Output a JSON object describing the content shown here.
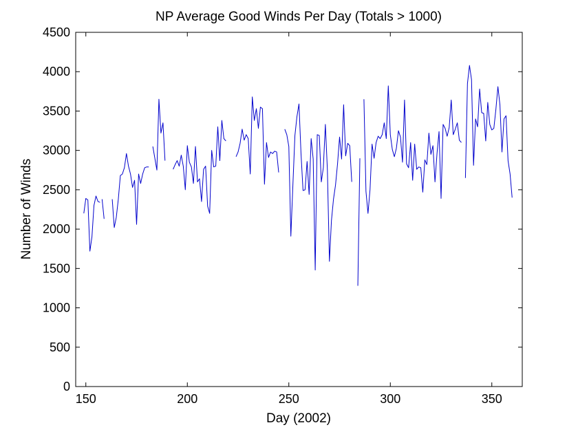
{
  "chart_data": {
    "type": "line",
    "title": "NP Average Good Winds Per Day (Totals > 1000)",
    "xlabel": "Day (2002)",
    "ylabel": "Number of Winds",
    "xlim": [
      145,
      365
    ],
    "ylim": [
      0,
      4500
    ],
    "xticks": [
      150,
      200,
      250,
      300,
      350
    ],
    "yticks": [
      0,
      500,
      1000,
      1500,
      2000,
      2500,
      3000,
      3500,
      4000,
      4500
    ],
    "grid": false,
    "legend": "none",
    "line_color": "#0000cc",
    "series": [
      {
        "segments": [
          [
            [
              149,
              2200
            ],
            [
              150,
              2390
            ],
            [
              151,
              2370
            ],
            [
              152,
              1720
            ],
            [
              153,
              1900
            ],
            [
              154,
              2300
            ],
            [
              155,
              2420
            ],
            [
              156,
              2350
            ],
            [
              157,
              2340
            ]
          ],
          [
            [
              158,
              2380
            ],
            [
              159,
              2130
            ]
          ],
          [
            [
              163,
              2380
            ],
            [
              164,
              2020
            ],
            [
              165,
              2150
            ],
            [
              166,
              2380
            ],
            [
              167,
              2680
            ],
            [
              168,
              2700
            ],
            [
              169,
              2780
            ],
            [
              170,
              2960
            ],
            [
              171,
              2800
            ],
            [
              172,
              2700
            ],
            [
              173,
              2530
            ],
            [
              174,
              2620
            ],
            [
              175,
              2060
            ],
            [
              176,
              2700
            ],
            [
              177,
              2580
            ],
            [
              178,
              2700
            ],
            [
              179,
              2780
            ],
            [
              180,
              2790
            ],
            [
              181,
              2790
            ]
          ],
          [
            [
              183,
              3050
            ],
            [
              184,
              2900
            ],
            [
              185,
              2750
            ],
            [
              186,
              3650
            ],
            [
              187,
              3220
            ],
            [
              188,
              3350
            ],
            [
              189,
              2870
            ]
          ],
          [
            [
              193,
              2760
            ],
            [
              194,
              2820
            ],
            [
              195,
              2870
            ],
            [
              196,
              2800
            ],
            [
              197,
              2940
            ],
            [
              198,
              2800
            ],
            [
              199,
              2500
            ],
            [
              200,
              3060
            ],
            [
              201,
              2850
            ],
            [
              202,
              2790
            ],
            [
              203,
              2580
            ],
            [
              204,
              3050
            ],
            [
              205,
              2600
            ],
            [
              206,
              2640
            ],
            [
              207,
              2350
            ],
            [
              208,
              2760
            ],
            [
              209,
              2800
            ],
            [
              210,
              2290
            ],
            [
              211,
              2200
            ],
            [
              212,
              3000
            ],
            [
              213,
              2790
            ],
            [
              214,
              2800
            ],
            [
              215,
              3300
            ],
            [
              216,
              2870
            ],
            [
              217,
              3380
            ],
            [
              218,
              3150
            ],
            [
              219,
              3120
            ]
          ],
          [
            [
              224,
              2920
            ],
            [
              225,
              2980
            ],
            [
              226,
              3090
            ],
            [
              227,
              3270
            ],
            [
              228,
              3130
            ],
            [
              229,
              3200
            ],
            [
              230,
              3150
            ],
            [
              231,
              2700
            ],
            [
              232,
              3680
            ],
            [
              233,
              3380
            ],
            [
              234,
              3530
            ],
            [
              235,
              3280
            ],
            [
              236,
              3550
            ],
            [
              237,
              3530
            ],
            [
              238,
              2570
            ],
            [
              239,
              3100
            ],
            [
              240,
              2910
            ],
            [
              241,
              2980
            ],
            [
              242,
              2960
            ],
            [
              243,
              2990
            ],
            [
              244,
              2980
            ],
            [
              245,
              2720
            ]
          ],
          [
            [
              248,
              3270
            ],
            [
              249,
              3200
            ],
            [
              250,
              3050
            ],
            [
              251,
              1910
            ],
            [
              252,
              2560
            ],
            [
              253,
              3190
            ],
            [
              254,
              3430
            ],
            [
              255,
              3590
            ],
            [
              256,
              2960
            ],
            [
              257,
              2490
            ],
            [
              258,
              2500
            ],
            [
              259,
              2860
            ],
            [
              260,
              2440
            ],
            [
              261,
              3150
            ],
            [
              262,
              2890
            ],
            [
              263,
              1480
            ],
            [
              264,
              3200
            ],
            [
              265,
              3190
            ],
            [
              266,
              2600
            ],
            [
              267,
              2780
            ],
            [
              268,
              3330
            ],
            [
              269,
              2750
            ],
            [
              270,
              1590
            ],
            [
              271,
              2110
            ],
            [
              272,
              2380
            ],
            [
              273,
              2560
            ],
            [
              274,
              2830
            ],
            [
              275,
              3170
            ],
            [
              276,
              2890
            ],
            [
              277,
              3580
            ],
            [
              278,
              2930
            ],
            [
              279,
              3090
            ],
            [
              280,
              3060
            ],
            [
              281,
              2600
            ]
          ],
          [
            [
              284,
              1280
            ],
            [
              285,
              2900
            ]
          ],
          [
            [
              287,
              3650
            ],
            [
              288,
              2480
            ],
            [
              289,
              2200
            ],
            [
              290,
              2500
            ],
            [
              291,
              3080
            ],
            [
              292,
              2900
            ],
            [
              293,
              3100
            ],
            [
              294,
              3180
            ],
            [
              295,
              3150
            ],
            [
              296,
              3200
            ],
            [
              297,
              3350
            ],
            [
              298,
              3150
            ],
            [
              299,
              3820
            ],
            [
              300,
              3200
            ],
            [
              301,
              3010
            ],
            [
              302,
              2920
            ],
            [
              303,
              3030
            ],
            [
              304,
              3250
            ],
            [
              305,
              3170
            ],
            [
              306,
              2850
            ],
            [
              307,
              3640
            ],
            [
              308,
              2830
            ],
            [
              309,
              2780
            ],
            [
              310,
              3100
            ],
            [
              311,
              2620
            ],
            [
              312,
              3080
            ],
            [
              313,
              2760
            ],
            [
              314,
              2790
            ],
            [
              315,
              2780
            ],
            [
              316,
              2470
            ],
            [
              317,
              2880
            ],
            [
              318,
              2820
            ],
            [
              319,
              3220
            ],
            [
              320,
              2950
            ],
            [
              321,
              3060
            ],
            [
              322,
              2600
            ],
            [
              323,
              2960
            ],
            [
              324,
              3240
            ],
            [
              325,
              2390
            ],
            [
              326,
              3330
            ],
            [
              327,
              3280
            ],
            [
              328,
              3180
            ],
            [
              329,
              3290
            ],
            [
              330,
              3640
            ],
            [
              331,
              3200
            ],
            [
              332,
              3270
            ],
            [
              333,
              3350
            ],
            [
              334,
              3130
            ],
            [
              335,
              3100
            ]
          ],
          [
            [
              337,
              2650
            ],
            [
              338,
              3850
            ],
            [
              339,
              4080
            ],
            [
              340,
              3900
            ],
            [
              341,
              2810
            ],
            [
              342,
              3400
            ],
            [
              343,
              3300
            ],
            [
              344,
              3780
            ],
            [
              345,
              3480
            ],
            [
              346,
              3470
            ],
            [
              347,
              3120
            ],
            [
              348,
              3610
            ],
            [
              349,
              3330
            ],
            [
              350,
              3260
            ],
            [
              351,
              3280
            ],
            [
              352,
              3520
            ],
            [
              353,
              3810
            ],
            [
              354,
              3580
            ],
            [
              355,
              2980
            ],
            [
              356,
              3400
            ],
            [
              357,
              3440
            ],
            [
              358,
              2870
            ],
            [
              359,
              2700
            ],
            [
              360,
              2400
            ]
          ]
        ]
      }
    ]
  }
}
